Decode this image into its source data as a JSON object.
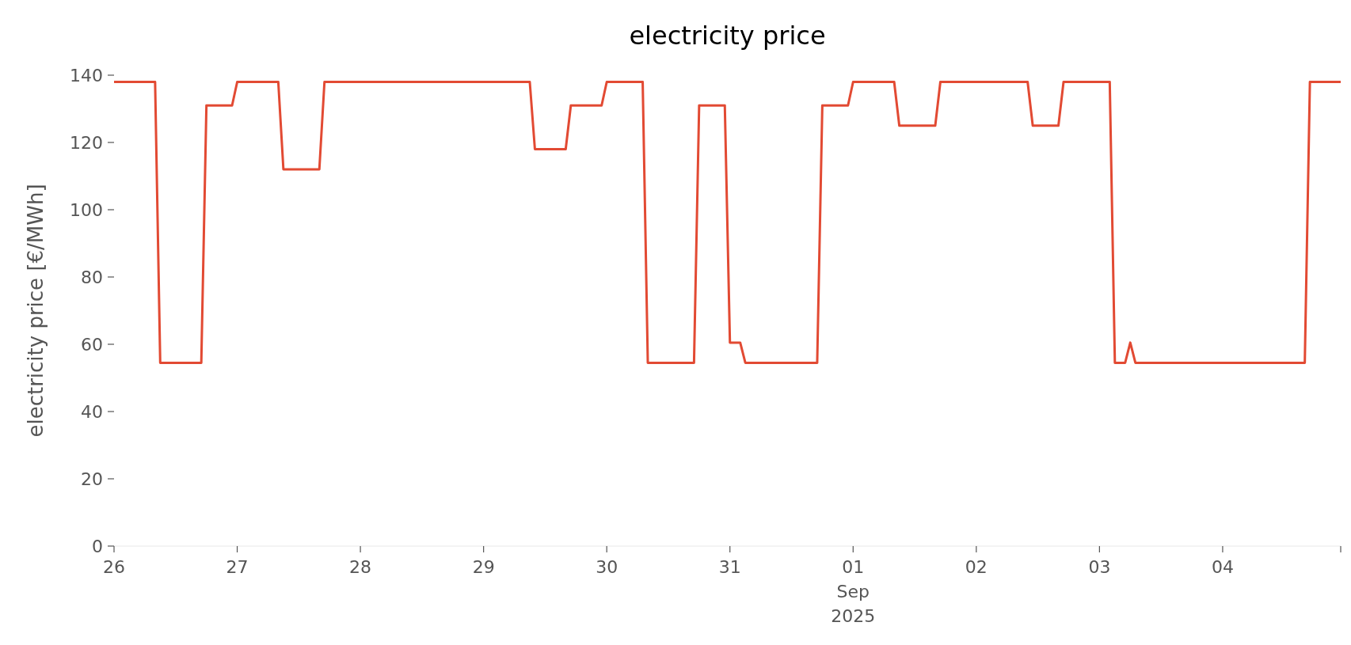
{
  "chart_data": {
    "type": "line",
    "title": "electricity price",
    "ylabel": "electricity price [€/MWh]",
    "x": [
      "2025-08-26T00:00",
      "2025-08-26T08:00",
      "2025-08-26T09:00",
      "2025-08-26T17:00",
      "2025-08-26T18:00",
      "2025-08-26T23:00",
      "2025-08-27T00:00",
      "2025-08-27T08:00",
      "2025-08-27T09:00",
      "2025-08-27T16:00",
      "2025-08-27T17:00",
      "2025-08-29T09:00",
      "2025-08-29T10:00",
      "2025-08-29T16:00",
      "2025-08-29T17:00",
      "2025-08-29T23:00",
      "2025-08-30T00:00",
      "2025-08-30T07:00",
      "2025-08-30T08:00",
      "2025-08-30T17:00",
      "2025-08-30T18:00",
      "2025-08-30T23:00",
      "2025-08-31T00:00",
      "2025-08-31T02:00",
      "2025-08-31T03:00",
      "2025-08-31T17:00",
      "2025-08-31T18:00",
      "2025-08-31T23:00",
      "2025-09-01T00:00",
      "2025-09-01T08:00",
      "2025-09-01T09:00",
      "2025-09-01T16:00",
      "2025-09-01T17:00",
      "2025-09-02T10:00",
      "2025-09-02T11:00",
      "2025-09-02T16:00",
      "2025-09-02T17:00",
      "2025-09-03T02:00",
      "2025-09-03T03:00",
      "2025-09-03T05:00",
      "2025-09-03T06:00",
      "2025-09-03T07:00",
      "2025-09-04T16:00",
      "2025-09-04T17:00",
      "2025-09-04T23:00"
    ],
    "series": [
      {
        "color": "#e24a33",
        "values": [
          138,
          138,
          54.5,
          54.5,
          131,
          131,
          138,
          138,
          112,
          112,
          138,
          138,
          118,
          118,
          131,
          131,
          138,
          138,
          54.5,
          54.5,
          131,
          131,
          60.5,
          60.5,
          54.5,
          54.5,
          131,
          131,
          138,
          138,
          125,
          125,
          138,
          138,
          125,
          125,
          138,
          138,
          54.5,
          54.5,
          60.5,
          54.5,
          54.5,
          138,
          138
        ]
      }
    ],
    "xticks": [
      {
        "value": "2025-08-26T00:00",
        "label": "26"
      },
      {
        "value": "2025-08-27T00:00",
        "label": "27"
      },
      {
        "value": "2025-08-28T00:00",
        "label": "28"
      },
      {
        "value": "2025-08-29T00:00",
        "label": "29"
      },
      {
        "value": "2025-08-30T00:00",
        "label": "30"
      },
      {
        "value": "2025-08-31T00:00",
        "label": "31"
      },
      {
        "value": "2025-09-01T00:00",
        "label": "01\nSep\n2025"
      },
      {
        "value": "2025-09-02T00:00",
        "label": "02"
      },
      {
        "value": "2025-09-03T00:00",
        "label": "03"
      },
      {
        "value": "2025-09-04T00:00",
        "label": "04"
      },
      {
        "value": "2025-09-04T23:00",
        "label": null
      }
    ],
    "xlim": [
      "2025-08-26T00:00",
      "2025-09-04T23:00"
    ],
    "ylim": [
      0,
      140
    ],
    "yticks": [
      0,
      20,
      40,
      60,
      80,
      100,
      120,
      140
    ],
    "grid": false,
    "marker": "none",
    "line_style": "solid"
  }
}
